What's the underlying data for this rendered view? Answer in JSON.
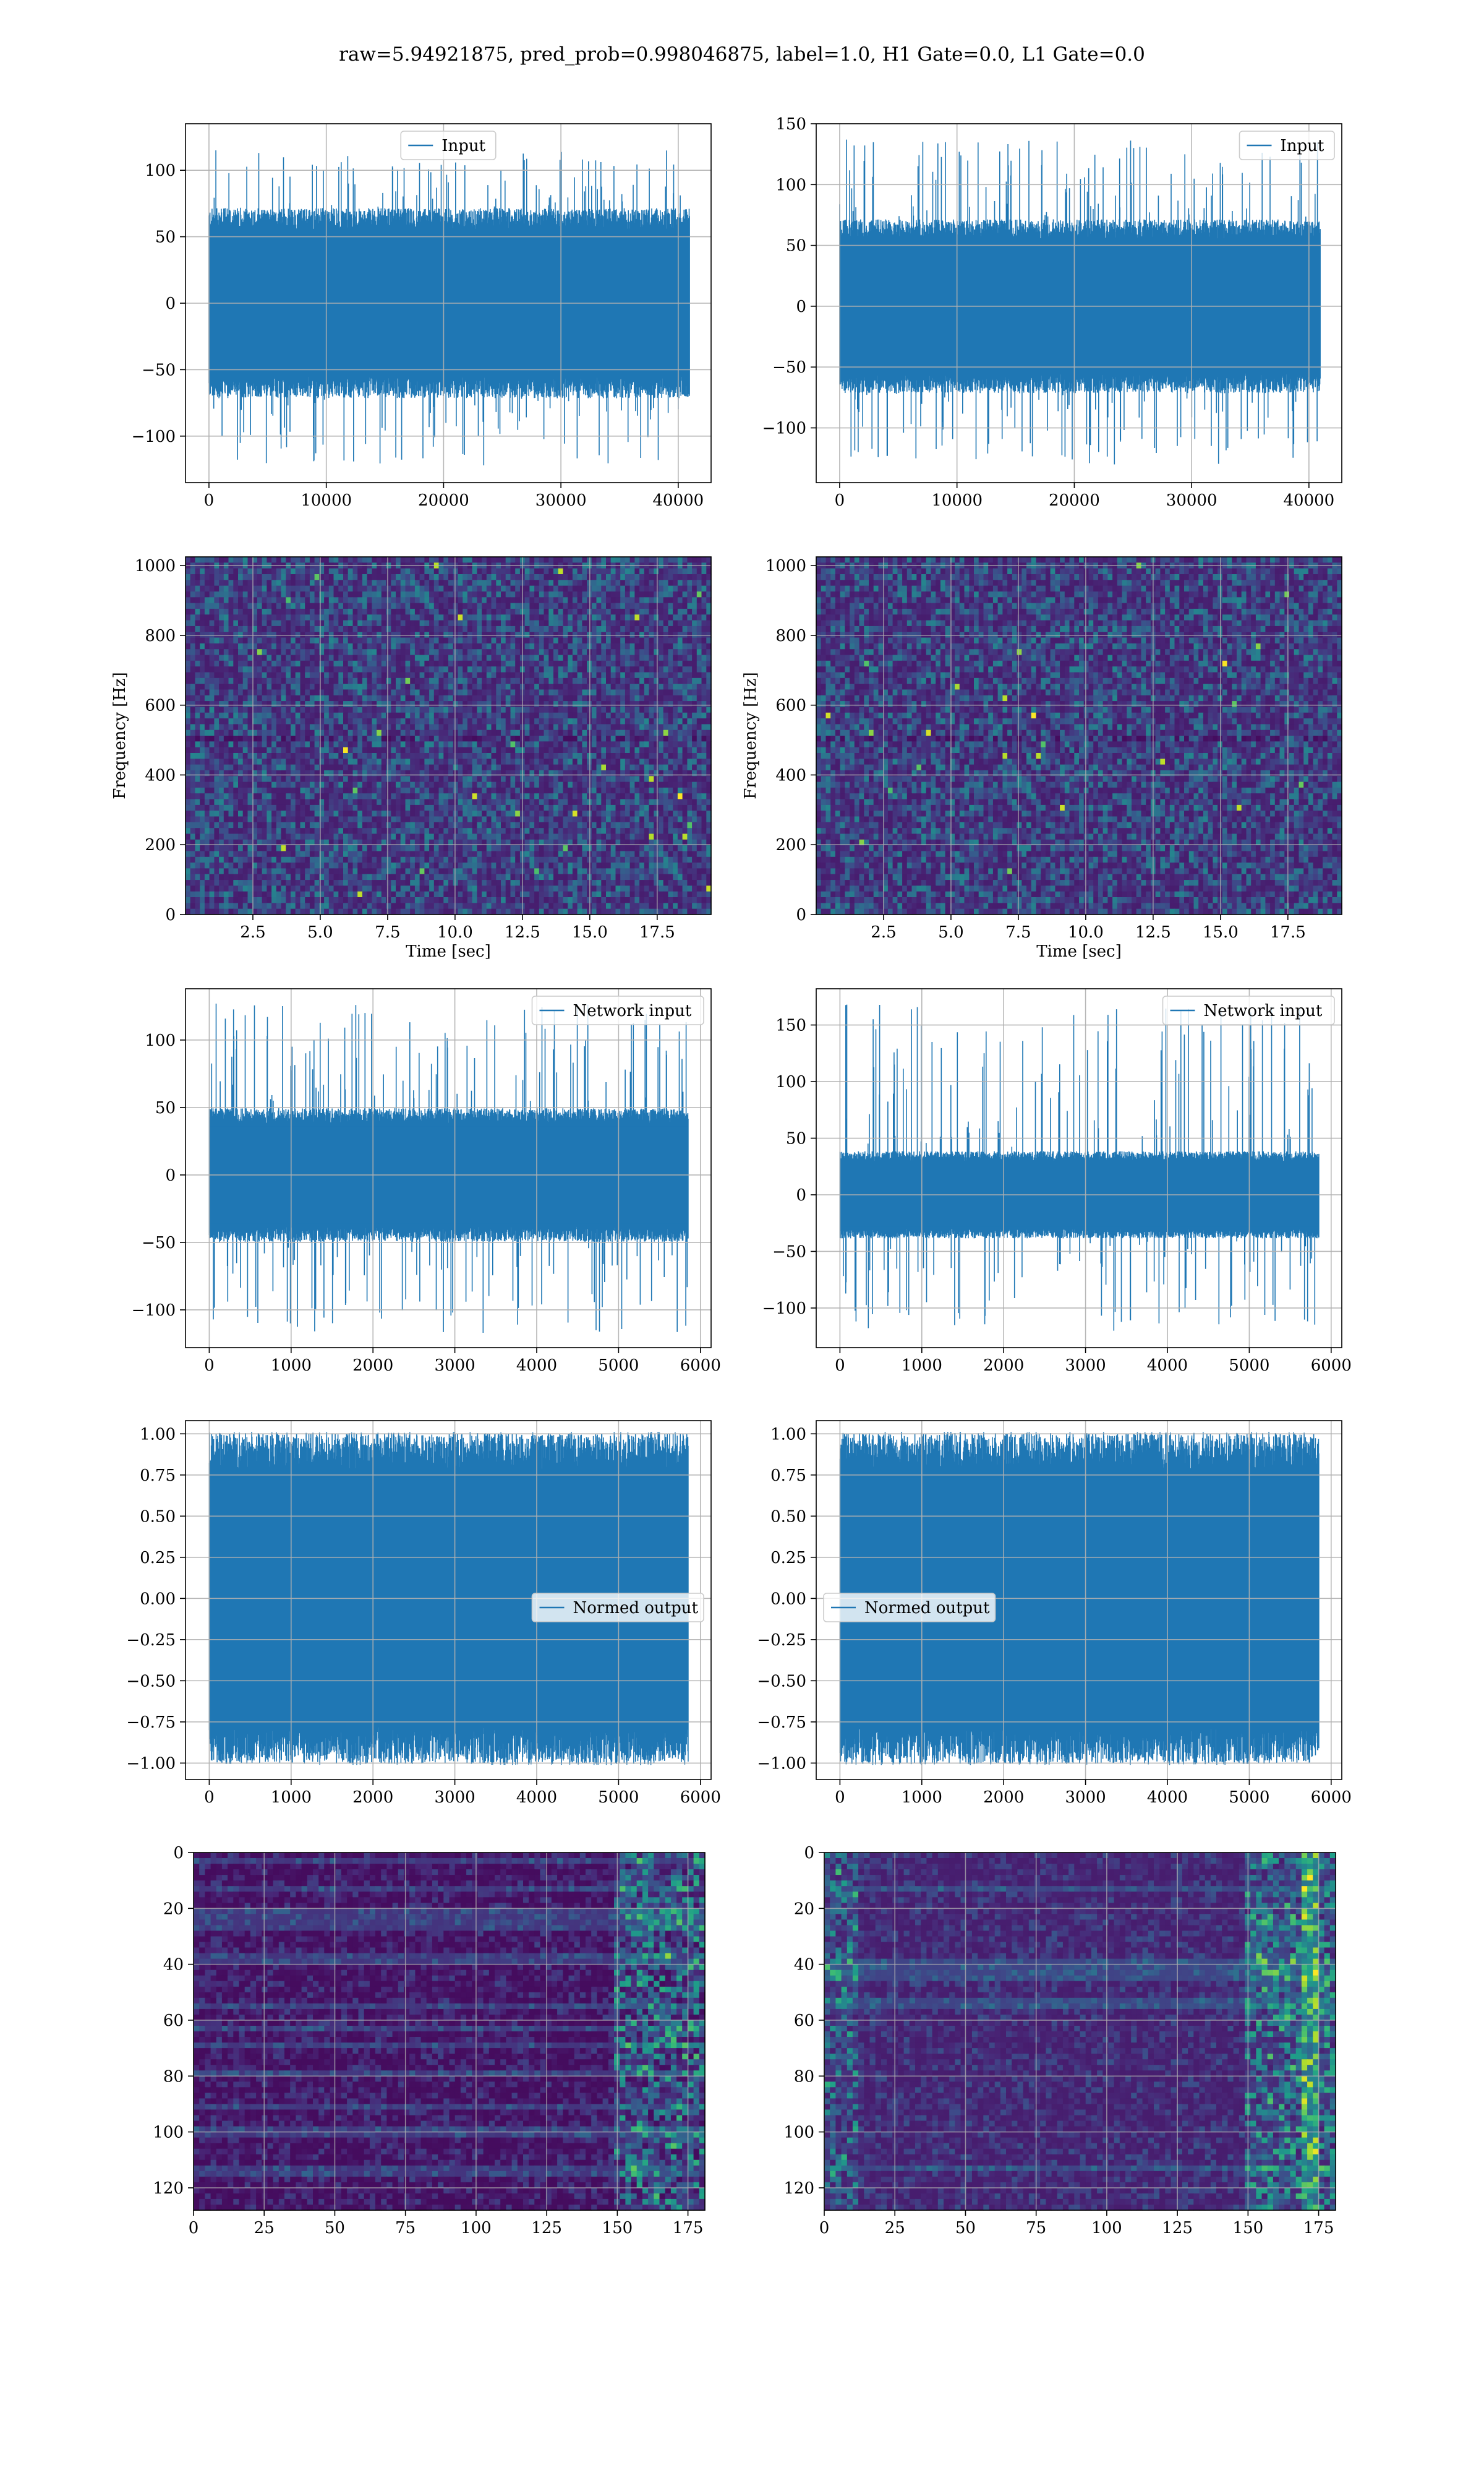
{
  "figure": {
    "suptitle": "raw=5.94921875, pred_prob=0.998046875, label=1.0, H1 Gate=0.0, L1 Gate=0.0",
    "colors": {
      "line": "#1f77b4",
      "grid": "#b0b0b0",
      "viridis": [
        "#440154",
        "#482878",
        "#3e4a89",
        "#31688e",
        "#26828e",
        "#1f9e89",
        "#35b779",
        "#6ece58",
        "#b5de2b",
        "#fde725"
      ]
    }
  },
  "chart_data": [
    {
      "type": "line",
      "panel": "row1-left",
      "series": [
        {
          "name": "Input",
          "envelope": {
            "upper": 65,
            "lower": -65,
            "max": 115,
            "min": -122
          }
        }
      ],
      "xlim": [
        -2000,
        42800
      ],
      "ylim": [
        -135,
        135
      ],
      "xticks": [
        0,
        10000,
        20000,
        30000,
        40000
      ],
      "yticks": [
        -100,
        -50,
        0,
        50,
        100
      ],
      "xticklabels": [
        "0",
        "10000",
        "20000",
        "30000",
        "40000"
      ],
      "yticklabels": [
        "−100",
        "−50",
        "0",
        "50",
        "100"
      ],
      "legend": "upper center",
      "grid": true,
      "xlabel": "",
      "ylabel": "",
      "title": ""
    },
    {
      "type": "line",
      "panel": "row1-right",
      "series": [
        {
          "name": "Input",
          "envelope": {
            "upper": 65,
            "lower": -65,
            "max": 137,
            "min": -130
          }
        }
      ],
      "xlim": [
        -2000,
        42800
      ],
      "ylim": [
        -145,
        150
      ],
      "xticks": [
        0,
        10000,
        20000,
        30000,
        40000
      ],
      "yticks": [
        -100,
        -50,
        0,
        50,
        100,
        150
      ],
      "xticklabels": [
        "0",
        "10000",
        "20000",
        "30000",
        "40000"
      ],
      "yticklabels": [
        "−100",
        "−50",
        "0",
        "50",
        "100",
        "150"
      ],
      "legend": "upper right",
      "grid": true,
      "xlabel": "",
      "ylabel": "",
      "title": ""
    },
    {
      "type": "heatmap",
      "panel": "row2-left",
      "colormap": "viridis",
      "xlim": [
        0,
        19.5
      ],
      "ylim": [
        0,
        1025
      ],
      "xticks": [
        2.5,
        5,
        7.5,
        10,
        12.5,
        15,
        17.5
      ],
      "yticks": [
        0,
        200,
        400,
        600,
        800,
        1000
      ],
      "xticklabels": [
        "2.5",
        "5.0",
        "7.5",
        "10.0",
        "12.5",
        "15.0",
        "17.5"
      ],
      "yticklabels": [
        "0",
        "200",
        "400",
        "600",
        "800",
        "1000"
      ],
      "xlabel": "Time [sec]",
      "ylabel": "Frequency [Hz]",
      "grid": true,
      "title": ""
    },
    {
      "type": "heatmap",
      "panel": "row2-right",
      "colormap": "viridis",
      "xlim": [
        0,
        19.5
      ],
      "ylim": [
        0,
        1025
      ],
      "xticks": [
        2.5,
        5,
        7.5,
        10,
        12.5,
        15,
        17.5
      ],
      "yticks": [
        0,
        200,
        400,
        600,
        800,
        1000
      ],
      "xticklabels": [
        "2.5",
        "5.0",
        "7.5",
        "10.0",
        "12.5",
        "15.0",
        "17.5"
      ],
      "yticklabels": [
        "0",
        "200",
        "400",
        "600",
        "800",
        "1000"
      ],
      "xlabel": "Time [sec]",
      "ylabel": "Frequency [Hz]",
      "grid": true,
      "title": ""
    },
    {
      "type": "line",
      "panel": "row3-left",
      "series": [
        {
          "name": "Network input",
          "envelope": {
            "upper": 45,
            "lower": -45,
            "max": 127,
            "min": -117
          }
        }
      ],
      "xlim": [
        -290,
        6130
      ],
      "ylim": [
        -128,
        138
      ],
      "xticks": [
        0,
        1000,
        2000,
        3000,
        4000,
        5000,
        6000
      ],
      "yticks": [
        -100,
        -50,
        0,
        50,
        100
      ],
      "xticklabels": [
        "0",
        "1000",
        "2000",
        "3000",
        "4000",
        "5000",
        "6000"
      ],
      "yticklabels": [
        "−100",
        "−50",
        "0",
        "50",
        "100"
      ],
      "legend": "upper right",
      "grid": true,
      "xlabel": "",
      "ylabel": "",
      "title": ""
    },
    {
      "type": "line",
      "panel": "row3-right",
      "series": [
        {
          "name": "Network input",
          "envelope": {
            "upper": 35,
            "lower": -35,
            "max": 168,
            "min": -120
          }
        }
      ],
      "xlim": [
        -290,
        6130
      ],
      "ylim": [
        -135,
        182
      ],
      "xticks": [
        0,
        1000,
        2000,
        3000,
        4000,
        5000,
        6000
      ],
      "yticks": [
        -100,
        -50,
        0,
        50,
        100,
        150
      ],
      "xticklabels": [
        "0",
        "1000",
        "2000",
        "3000",
        "4000",
        "5000",
        "6000"
      ],
      "yticklabels": [
        "−100",
        "−50",
        "0",
        "50",
        "100",
        "150"
      ],
      "legend": "upper right",
      "grid": true,
      "xlabel": "",
      "ylabel": "",
      "title": ""
    },
    {
      "type": "line",
      "panel": "row4-left",
      "series": [
        {
          "name": "Normed output",
          "envelope": {
            "upper": 0.92,
            "lower": -0.92,
            "max": 1.0,
            "min": -1.0
          }
        }
      ],
      "xlim": [
        -290,
        6130
      ],
      "ylim": [
        -1.1,
        1.08
      ],
      "xticks": [
        0,
        1000,
        2000,
        3000,
        4000,
        5000,
        6000
      ],
      "yticks": [
        -1.0,
        -0.75,
        -0.5,
        -0.25,
        0.0,
        0.25,
        0.5,
        0.75,
        1.0
      ],
      "xticklabels": [
        "0",
        "1000",
        "2000",
        "3000",
        "4000",
        "5000",
        "6000"
      ],
      "yticklabels": [
        "−1.00",
        "−0.75",
        "−0.50",
        "−0.25",
        "0.00",
        "0.25",
        "0.50",
        "0.75",
        "1.00"
      ],
      "legend": "center right",
      "grid": true,
      "xlabel": "",
      "ylabel": "",
      "title": ""
    },
    {
      "type": "line",
      "panel": "row4-right",
      "series": [
        {
          "name": "Normed output",
          "envelope": {
            "upper": 0.92,
            "lower": -0.92,
            "max": 1.0,
            "min": -1.0
          }
        }
      ],
      "xlim": [
        -290,
        6130
      ],
      "ylim": [
        -1.1,
        1.08
      ],
      "xticks": [
        0,
        1000,
        2000,
        3000,
        4000,
        5000,
        6000
      ],
      "yticks": [
        -1.0,
        -0.75,
        -0.5,
        -0.25,
        0.0,
        0.25,
        0.5,
        0.75,
        1.0
      ],
      "xticklabels": [
        "0",
        "1000",
        "2000",
        "3000",
        "4000",
        "5000",
        "6000"
      ],
      "yticklabels": [
        "−1.00",
        "−0.75",
        "−0.50",
        "−0.25",
        "0.00",
        "0.25",
        "0.50",
        "0.75",
        "1.00"
      ],
      "legend": "center left",
      "grid": true,
      "xlabel": "",
      "ylabel": "",
      "title": ""
    },
    {
      "type": "heatmap",
      "panel": "row5-left",
      "colormap": "viridis",
      "xlim": [
        0,
        181
      ],
      "ylim": [
        128,
        0
      ],
      "xticks": [
        0,
        25,
        50,
        75,
        100,
        125,
        150,
        175
      ],
      "yticks": [
        0,
        20,
        40,
        60,
        80,
        100,
        120
      ],
      "xticklabels": [
        "0",
        "25",
        "50",
        "75",
        "100",
        "125",
        "150",
        "175"
      ],
      "yticklabels": [
        "0",
        "20",
        "40",
        "60",
        "80",
        "100",
        "120"
      ],
      "grid": true,
      "xlabel": "",
      "ylabel": "",
      "title": ""
    },
    {
      "type": "heatmap",
      "panel": "row5-right",
      "colormap": "viridis",
      "xlim": [
        0,
        181
      ],
      "ylim": [
        128,
        0
      ],
      "xticks": [
        0,
        25,
        50,
        75,
        100,
        125,
        150,
        175
      ],
      "yticks": [
        0,
        20,
        40,
        60,
        80,
        100,
        120
      ],
      "xticklabels": [
        "0",
        "25",
        "50",
        "75",
        "100",
        "125",
        "150",
        "175"
      ],
      "yticklabels": [
        "0",
        "20",
        "40",
        "60",
        "80",
        "100",
        "120"
      ],
      "grid": true,
      "xlabel": "",
      "ylabel": "",
      "title": ""
    }
  ]
}
